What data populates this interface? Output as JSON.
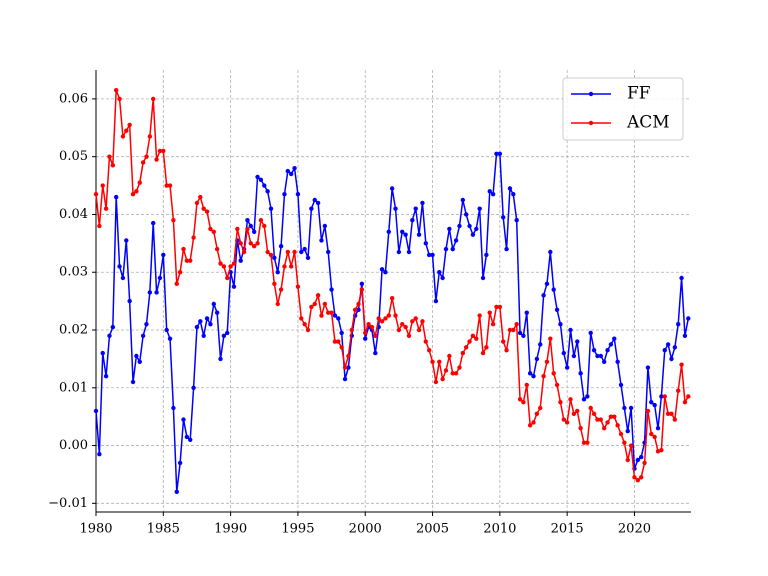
{
  "chart_data": {
    "type": "line",
    "x": [
      1980,
      1980.25,
      1980.5,
      1980.75,
      1981,
      1981.25,
      1981.5,
      1981.75,
      1982,
      1982.25,
      1982.5,
      1982.75,
      1983,
      1983.25,
      1983.5,
      1983.75,
      1984,
      1984.25,
      1984.5,
      1984.75,
      1985,
      1985.25,
      1985.5,
      1985.75,
      1986,
      1986.25,
      1986.5,
      1986.75,
      1987,
      1987.25,
      1987.5,
      1987.75,
      1988,
      1988.25,
      1988.5,
      1988.75,
      1989,
      1989.25,
      1989.5,
      1989.75,
      1990,
      1990.25,
      1990.5,
      1990.75,
      1991,
      1991.25,
      1991.5,
      1991.75,
      1992,
      1992.25,
      1992.5,
      1992.75,
      1993,
      1993.25,
      1993.5,
      1993.75,
      1994,
      1994.25,
      1994.5,
      1994.75,
      1995,
      1995.25,
      1995.5,
      1995.75,
      1996,
      1996.25,
      1996.5,
      1996.75,
      1997,
      1997.25,
      1997.5,
      1997.75,
      1998,
      1998.25,
      1998.5,
      1998.75,
      1999,
      1999.25,
      1999.5,
      1999.75,
      2000,
      2000.25,
      2000.5,
      2000.75,
      2001,
      2001.25,
      2001.5,
      2001.75,
      2002,
      2002.25,
      2002.5,
      2002.75,
      2003,
      2003.25,
      2003.5,
      2003.75,
      2004,
      2004.25,
      2004.5,
      2004.75,
      2005,
      2005.25,
      2005.5,
      2005.75,
      2006,
      2006.25,
      2006.5,
      2006.75,
      2007,
      2007.25,
      2007.5,
      2007.75,
      2008,
      2008.25,
      2008.5,
      2008.75,
      2009,
      2009.25,
      2009.5,
      2009.75,
      2010,
      2010.25,
      2010.5,
      2010.75,
      2011,
      2011.25,
      2011.5,
      2011.75,
      2012,
      2012.25,
      2012.5,
      2012.75,
      2013,
      2013.25,
      2013.5,
      2013.75,
      2014,
      2014.25,
      2014.5,
      2014.75,
      2015,
      2015.25,
      2015.5,
      2015.75,
      2016,
      2016.25,
      2016.5,
      2016.75,
      2017,
      2017.25,
      2017.5,
      2017.75,
      2018,
      2018.25,
      2018.5,
      2018.75,
      2019,
      2019.25,
      2019.5,
      2019.75,
      2020,
      2020.25,
      2020.5,
      2020.75,
      2021,
      2021.25,
      2021.5,
      2021.75,
      2022,
      2022.25,
      2022.5,
      2022.75,
      2023,
      2023.25,
      2023.5,
      2023.75,
      2024
    ],
    "series": [
      {
        "name": "FF",
        "color": "#0000ff",
        "values": [
          0.006,
          -0.0015,
          0.016,
          0.012,
          0.019,
          0.0205,
          0.043,
          0.031,
          0.029,
          0.0355,
          0.025,
          0.011,
          0.0155,
          0.0145,
          0.019,
          0.021,
          0.0265,
          0.0385,
          0.0265,
          0.029,
          0.033,
          0.02,
          0.0185,
          0.0065,
          -0.008,
          -0.003,
          0.0045,
          0.0015,
          0.001,
          0.01,
          0.0205,
          0.0215,
          0.019,
          0.022,
          0.021,
          0.0245,
          0.023,
          0.015,
          0.019,
          0.0195,
          0.03,
          0.0275,
          0.0355,
          0.032,
          0.034,
          0.039,
          0.038,
          0.037,
          0.0465,
          0.046,
          0.045,
          0.044,
          0.041,
          0.0325,
          0.03,
          0.0345,
          0.0435,
          0.0475,
          0.047,
          0.048,
          0.0435,
          0.0335,
          0.034,
          0.0325,
          0.041,
          0.0425,
          0.042,
          0.0355,
          0.038,
          0.0335,
          0.027,
          0.0225,
          0.022,
          0.0195,
          0.0115,
          0.0135,
          0.019,
          0.0225,
          0.0235,
          0.028,
          0.0185,
          0.0205,
          0.02,
          0.016,
          0.0205,
          0.0305,
          0.03,
          0.037,
          0.0445,
          0.041,
          0.0335,
          0.037,
          0.0365,
          0.0335,
          0.039,
          0.041,
          0.0365,
          0.042,
          0.035,
          0.033,
          0.033,
          0.025,
          0.03,
          0.029,
          0.034,
          0.0375,
          0.034,
          0.0355,
          0.038,
          0.0425,
          0.04,
          0.038,
          0.0365,
          0.0375,
          0.041,
          0.029,
          0.033,
          0.044,
          0.0435,
          0.0505,
          0.0505,
          0.0395,
          0.034,
          0.0445,
          0.0435,
          0.039,
          0.0195,
          0.019,
          0.023,
          0.0125,
          0.012,
          0.015,
          0.0175,
          0.026,
          0.028,
          0.0335,
          0.027,
          0.0235,
          0.021,
          0.016,
          0.0135,
          0.02,
          0.0155,
          0.018,
          0.0125,
          0.008,
          0.0085,
          0.0195,
          0.0165,
          0.0155,
          0.0155,
          0.0145,
          0.0165,
          0.0175,
          0.0185,
          0.0145,
          0.0105,
          0.0065,
          0.0025,
          0.0065,
          -0.004,
          -0.0025,
          -0.002,
          0.0005,
          0.0135,
          0.0075,
          0.007,
          0.003,
          0.0085,
          0.0165,
          0.0175,
          0.015,
          0.017,
          0.021,
          0.029,
          0.019,
          0.022
        ]
      },
      {
        "name": "ACM",
        "color": "#ff0000",
        "values": [
          0.0435,
          0.038,
          0.045,
          0.041,
          0.05,
          0.0485,
          0.0615,
          0.06,
          0.0535,
          0.0545,
          0.0555,
          0.0435,
          0.044,
          0.0455,
          0.049,
          0.05,
          0.0535,
          0.06,
          0.0495,
          0.051,
          0.051,
          0.045,
          0.045,
          0.039,
          0.028,
          0.03,
          0.034,
          0.032,
          0.032,
          0.036,
          0.042,
          0.043,
          0.041,
          0.0405,
          0.0375,
          0.037,
          0.034,
          0.0315,
          0.031,
          0.029,
          0.031,
          0.0315,
          0.0375,
          0.035,
          0.0335,
          0.0375,
          0.035,
          0.0345,
          0.035,
          0.039,
          0.038,
          0.0335,
          0.033,
          0.028,
          0.0245,
          0.027,
          0.031,
          0.0335,
          0.031,
          0.0335,
          0.0275,
          0.022,
          0.021,
          0.02,
          0.024,
          0.0245,
          0.026,
          0.0225,
          0.0245,
          0.023,
          0.023,
          0.018,
          0.018,
          0.017,
          0.0135,
          0.0155,
          0.02,
          0.0235,
          0.0245,
          0.027,
          0.0195,
          0.021,
          0.0205,
          0.019,
          0.022,
          0.0215,
          0.022,
          0.0225,
          0.0255,
          0.0225,
          0.02,
          0.021,
          0.0205,
          0.019,
          0.0215,
          0.022,
          0.02,
          0.0215,
          0.018,
          0.0165,
          0.0145,
          0.011,
          0.0145,
          0.0115,
          0.013,
          0.0155,
          0.0125,
          0.0125,
          0.0135,
          0.016,
          0.017,
          0.018,
          0.019,
          0.0185,
          0.0225,
          0.016,
          0.017,
          0.023,
          0.021,
          0.024,
          0.024,
          0.018,
          0.0165,
          0.02,
          0.02,
          0.021,
          0.008,
          0.0075,
          0.0105,
          0.0035,
          0.004,
          0.0055,
          0.0065,
          0.012,
          0.0145,
          0.0185,
          0.0125,
          0.0105,
          0.0075,
          0.0045,
          0.004,
          0.008,
          0.0055,
          0.006,
          0.003,
          0.0005,
          0.0005,
          0.0065,
          0.0055,
          0.0045,
          0.0045,
          0.003,
          0.004,
          0.005,
          0.005,
          0.0035,
          0.002,
          0.0005,
          -0.0025,
          0,
          -0.0055,
          -0.006,
          -0.0055,
          -0.003,
          0.006,
          0.002,
          0.0015,
          -0.001,
          -0.0008,
          0.0085,
          0.0055,
          0.0055,
          0.0045,
          0.0095,
          0.014,
          0.0075,
          0.0085
        ]
      }
    ],
    "xlim": [
      1980,
      2024.2
    ],
    "xticks": [
      1980,
      1985,
      1990,
      1995,
      2000,
      2005,
      2010,
      2015,
      2020
    ],
    "ylim": [
      -0.0115,
      0.065
    ],
    "yticks": [
      {
        "value": -0.01,
        "label": "−0.01"
      },
      {
        "value": 0,
        "label": "0.00"
      },
      {
        "value": 0.01,
        "label": "0.01"
      },
      {
        "value": 0.02,
        "label": "0.02"
      },
      {
        "value": 0.03,
        "label": "0.03"
      },
      {
        "value": 0.04,
        "label": "0.04"
      },
      {
        "value": 0.05,
        "label": "0.05"
      },
      {
        "value": 0.06,
        "label": "0.06"
      }
    ],
    "grid": true,
    "legend": "upper right"
  }
}
